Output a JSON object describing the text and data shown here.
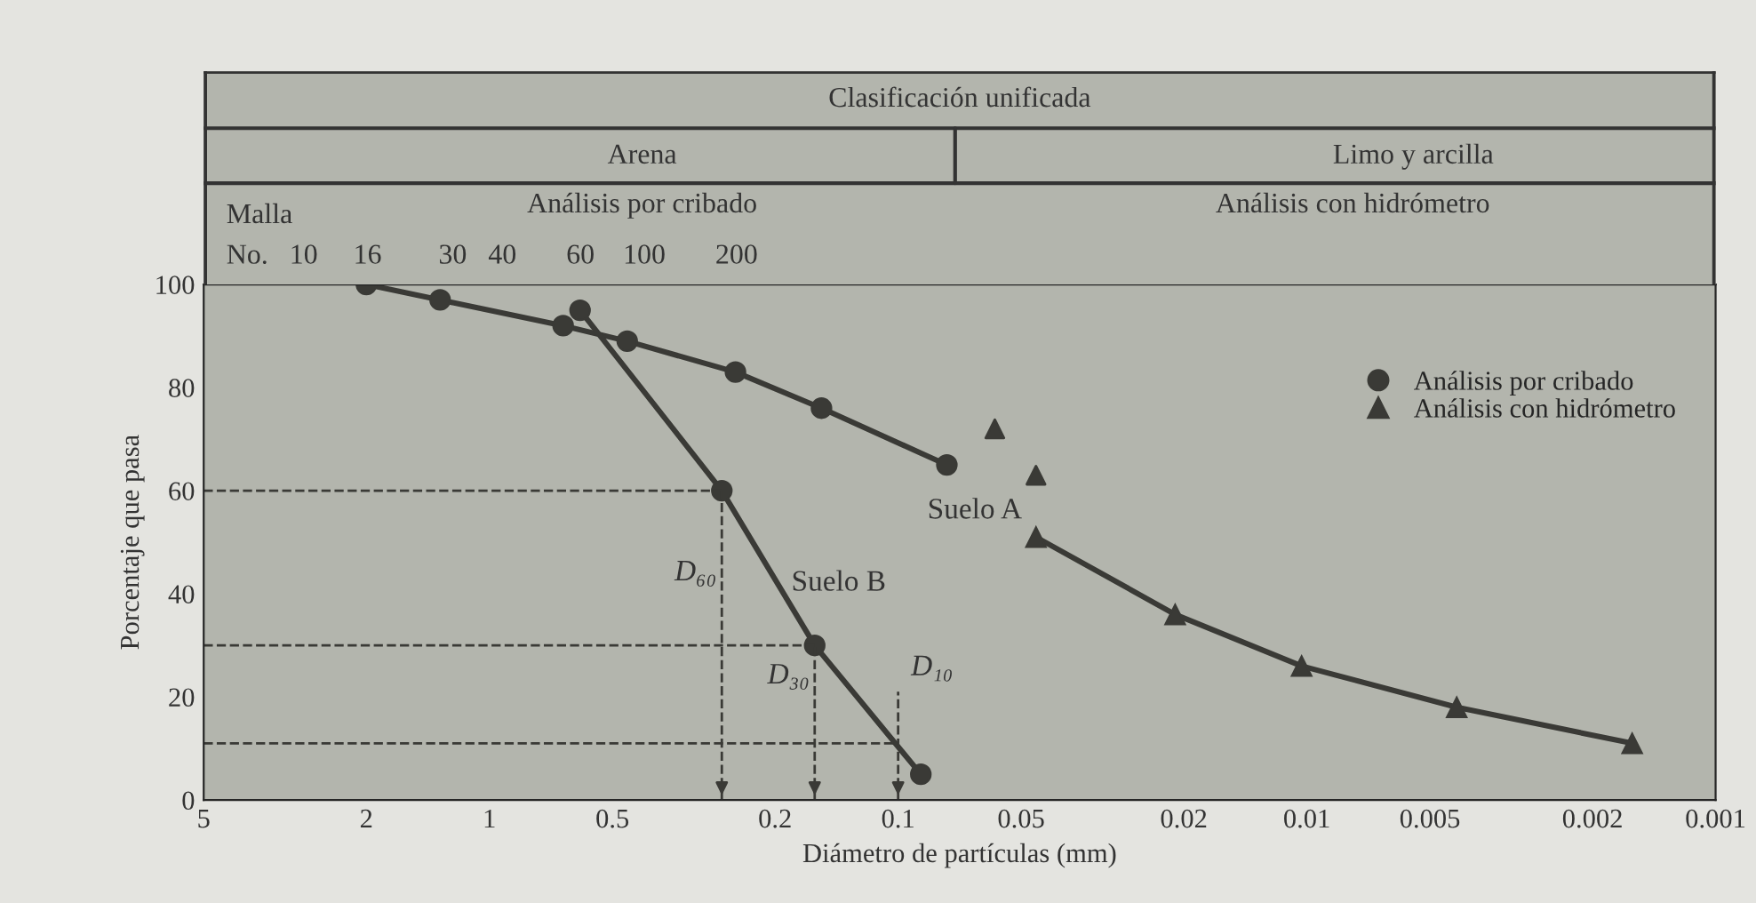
{
  "chart_data": {
    "type": "line",
    "xlabel": "Diámetro de partículas (mm)",
    "ylabel": "Porcentaje que pasa",
    "log": "x",
    "xlim": [
      5,
      0.001
    ],
    "xticks": [
      5,
      2,
      1,
      0.5,
      0.2,
      0.1,
      0.05,
      0.02,
      0.01,
      0.005,
      0.002,
      0.001
    ],
    "ylim": [
      0,
      100
    ],
    "yticks": [
      0,
      20,
      40,
      60,
      80,
      100
    ],
    "grid": false,
    "legend": "top right",
    "series": [
      {
        "name": "Análisis por cribado",
        "marker": "circle",
        "color": "#3a3a36",
        "x": [
          2.0,
          1.32,
          0.66,
          0.46,
          0.25,
          0.154,
          0.076
        ],
        "values": [
          100,
          97,
          92,
          89,
          83,
          76,
          65
        ]
      },
      {
        "name": "Análisis con hidrómetro",
        "marker": "triangle",
        "color": "#3a3a36",
        "x": [
          0.046,
          0.021,
          0.0103,
          0.0043,
          0.0016
        ],
        "values": [
          51,
          36,
          26,
          18,
          11
        ]
      },
      {
        "marker": "circle",
        "color": "#3a3a36",
        "x": [
          0.6,
          0.27,
          0.16,
          0.088
        ],
        "values": [
          95,
          60,
          30,
          5
        ]
      },
      {
        "type": "scatter",
        "marker": "triangle",
        "color": "#3a3a36",
        "x": [
          0.058,
          0.046
        ],
        "values": [
          72,
          63
        ]
      }
    ],
    "ref_lines": [
      {
        "axis": "x",
        "value": 0.27,
        "label": "D₆₀",
        "line_style": "dashed",
        "color": "#3a3a36"
      },
      {
        "axis": "x",
        "value": 0.16,
        "label": "D₃₀",
        "line_style": "dashed",
        "color": "#3a3a36"
      },
      {
        "axis": "x",
        "value": 0.1,
        "label": "D₁₀",
        "line_style": "dashed",
        "color": "#3a3a36"
      },
      {
        "axis": "y",
        "value": 60,
        "line_style": "dashed",
        "color": "#3a3a36"
      },
      {
        "axis": "y",
        "value": 30,
        "line_style": "dashed",
        "color": "#3a3a36"
      },
      {
        "axis": "y",
        "value": 11,
        "line_style": "dashed",
        "color": "#3a3a36"
      }
    ],
    "annotations": [
      "Clasificación unificada",
      "Arena",
      "Limo y arcilla",
      "Malla",
      "Análisis por cribado",
      "Análisis con hidrómetro",
      "No.   10     16        30   40       60    100       200",
      "Suelo A",
      "Suelo B"
    ]
  }
}
